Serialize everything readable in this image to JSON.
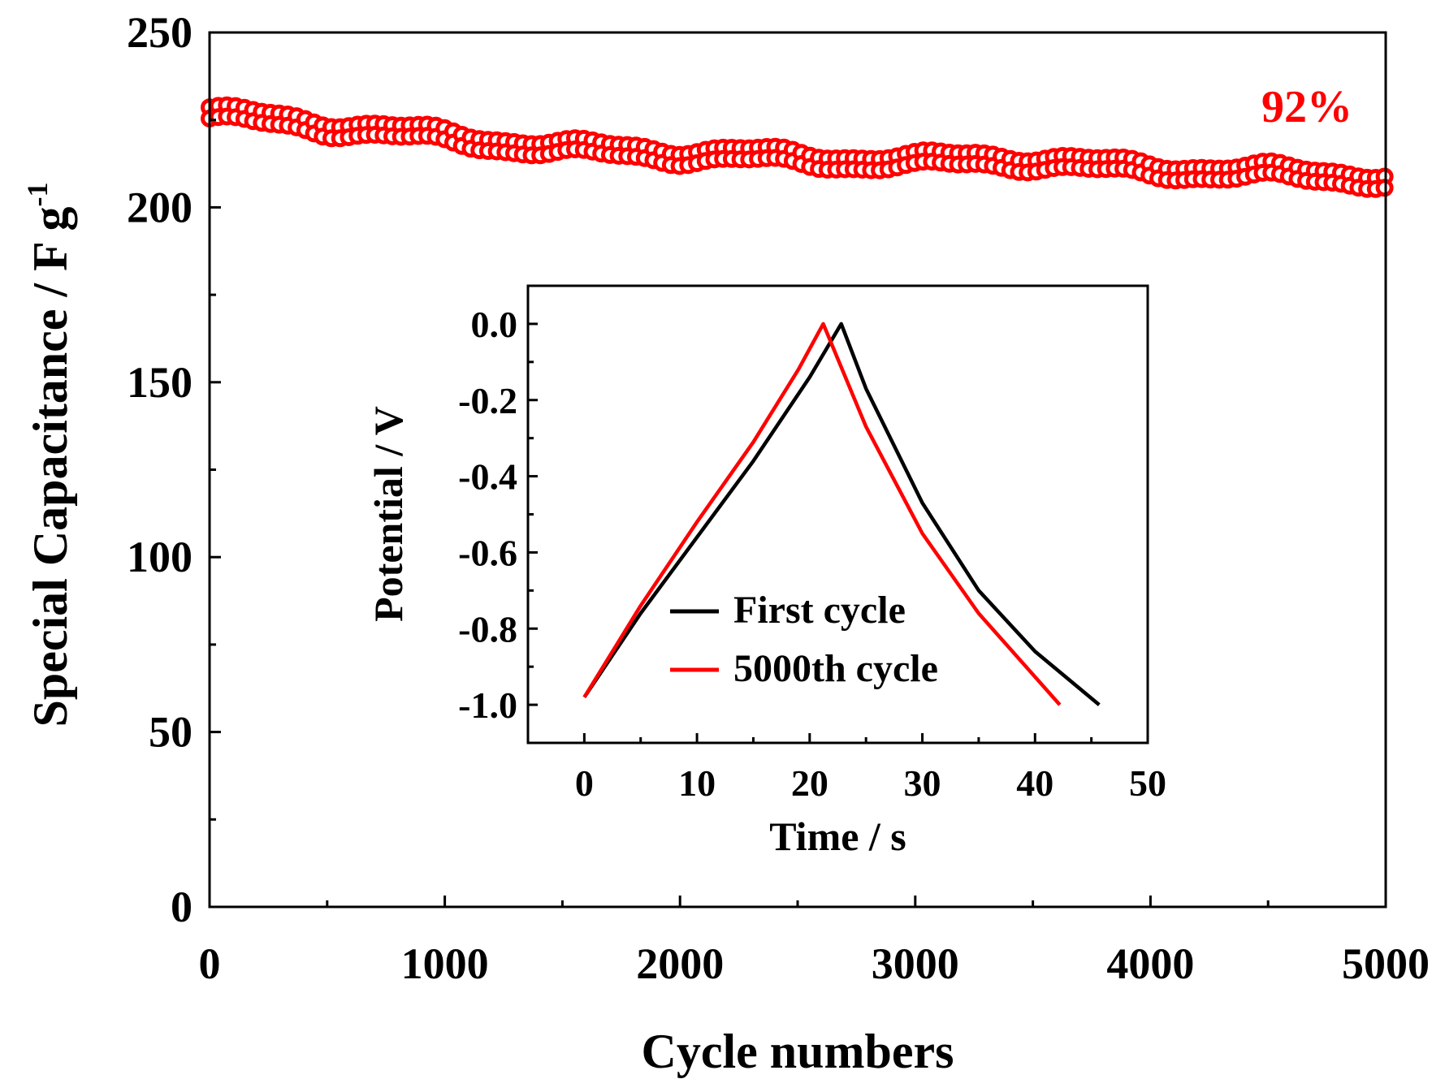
{
  "chart_data": [
    {
      "type": "scatter",
      "title": "",
      "xlabel": "Cycle numbers",
      "ylabel": "Special Capacitance / F g",
      "ylabel_superscript": "-1",
      "xlim": [
        0,
        5000
      ],
      "ylim": [
        0,
        250
      ],
      "xticks": [
        0,
        1000,
        2000,
        3000,
        4000,
        5000
      ],
      "yticks": [
        0,
        50,
        100,
        150,
        200,
        250
      ],
      "grid": false,
      "annotation": {
        "text": "92%",
        "color": "#ff0000"
      },
      "series": [
        {
          "color": "#ff0000",
          "marker": "open-circle",
          "x": [
            0,
            250,
            500,
            750,
            1000,
            1250,
            1500,
            1750,
            2000,
            2250,
            2500,
            2750,
            3000,
            3250,
            3500,
            3750,
            4000,
            4250,
            4500,
            4750,
            5000
          ],
          "y": [
            227,
            225,
            223,
            222,
            220,
            218,
            217,
            216,
            215,
            215,
            214,
            213,
            213,
            214,
            213,
            212,
            211,
            210,
            210,
            209,
            208
          ]
        }
      ]
    },
    {
      "type": "line",
      "title": "",
      "xlabel": "Time / s",
      "ylabel": "Potential / V",
      "xlim": [
        -5,
        50
      ],
      "ylim": [
        -1.1,
        0.1
      ],
      "xticks": [
        0,
        10,
        20,
        30,
        40,
        50
      ],
      "yticks": [
        "0.0",
        "-0.2",
        "-0.4",
        "-0.6",
        "-0.8",
        "-1.0"
      ],
      "legend_position": "bottom-left",
      "series": [
        {
          "name": "First cycle",
          "color": "#000000",
          "x": [
            0,
            5,
            10,
            15,
            20,
            22.8,
            25,
            30,
            35,
            40,
            45.7
          ],
          "y": [
            -0.98,
            -0.76,
            -0.56,
            -0.36,
            -0.14,
            0.0,
            -0.17,
            -0.47,
            -0.7,
            -0.86,
            -1.0
          ]
        },
        {
          "name": "5000th cycle",
          "color": "#ff0000",
          "x": [
            0,
            5,
            10,
            15,
            19,
            21.2,
            25,
            30,
            35,
            42.2
          ],
          "y": [
            -0.98,
            -0.74,
            -0.52,
            -0.31,
            -0.12,
            0.0,
            -0.27,
            -0.55,
            -0.76,
            -1.0
          ]
        }
      ]
    }
  ]
}
